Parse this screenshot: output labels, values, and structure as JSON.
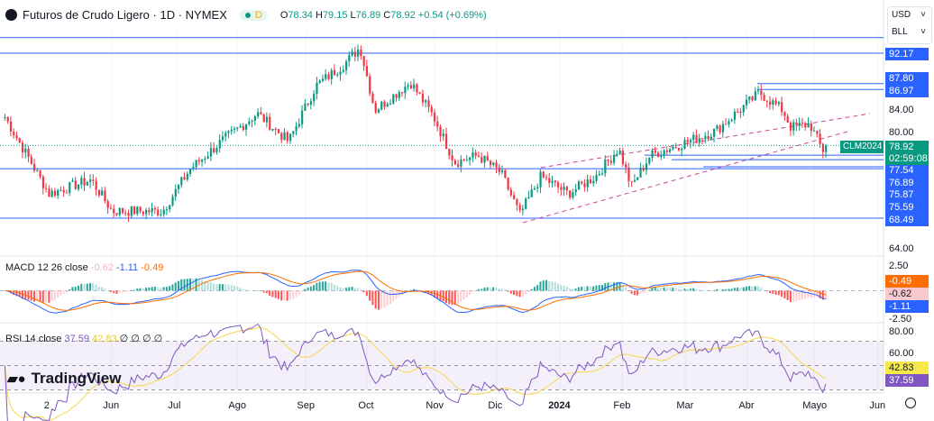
{
  "header": {
    "title": "Futuros de Crudo Ligero · 1D · NYMEX",
    "badge": "D",
    "open_label": "O",
    "open": "78.34",
    "high_label": "H",
    "high": "79.15",
    "low_label": "L",
    "low": "76.89",
    "close_label": "C",
    "close": "78.92",
    "change": "+0.54 (+0.69%)"
  },
  "selectors": {
    "currency": "USD",
    "unit": "BLL"
  },
  "price_axis": {
    "ticks": [
      "84.00",
      "80.00",
      "64.00"
    ],
    "levels": [
      "92.17",
      "87.80",
      "86.97",
      "77.54",
      "76.89",
      "75.87",
      "75.59",
      "68.49"
    ],
    "symbol_tag": "CLM2024",
    "last_price": "78.92",
    "countdown": "02:59:08"
  },
  "macd": {
    "label": "MACD",
    "params": "12 26 close",
    "hist": "-0.62",
    "macd": "-1.11",
    "signal": "-0.49",
    "ticks": [
      "2.50",
      "-2.50"
    ]
  },
  "rsi": {
    "label": "RSI",
    "params": "14 close",
    "value": "37.59",
    "ma": "42.83",
    "empty": [
      "∅",
      "∅",
      "∅",
      "∅"
    ],
    "ticks": [
      "80.00",
      "60.00"
    ]
  },
  "x_axis": [
    "2",
    "Jun",
    "Jul",
    "Ago",
    "Sep",
    "Oct",
    "Nov",
    "Dic",
    "2024",
    "Feb",
    "Mar",
    "Abr",
    "Mayo",
    "Jun"
  ],
  "brand": "TradingView",
  "colors": {
    "up": "#089981",
    "down": "#f23645",
    "level": "#2962ff",
    "macd": "#2962ff",
    "signal": "#ff6d00",
    "rsi": "#7e57c2",
    "rsi_ma": "#f7d74a"
  },
  "chart_data": {
    "type": "candlestick",
    "ylim": [
      62,
      96
    ],
    "close_path": [
      [
        "2023-04-12",
        83
      ],
      [
        "2023-05-03",
        72
      ],
      [
        "2023-05-23",
        74
      ],
      [
        "2023-06-02",
        69.5
      ],
      [
        "2023-06-26",
        69.5
      ],
      [
        "2023-07-09",
        75.5
      ],
      [
        "2023-07-24",
        79.5
      ],
      [
        "2023-08-10",
        83.5
      ],
      [
        "2023-08-25",
        79.5
      ],
      [
        "2023-09-07",
        87.5
      ],
      [
        "2023-09-20",
        90.5
      ],
      [
        "2023-09-28",
        93
      ],
      [
        "2023-10-05",
        84
      ],
      [
        "2023-10-22",
        88
      ],
      [
        "2023-11-02",
        83
      ],
      [
        "2023-11-12",
        76.5
      ],
      [
        "2023-11-23",
        77.5
      ],
      [
        "2023-12-04",
        75
      ],
      [
        "2023-12-13",
        69
      ],
      [
        "2023-12-23",
        74.5
      ],
      [
        "2024-01-05",
        72
      ],
      [
        "2024-01-18",
        74.5
      ],
      [
        "2024-01-29",
        78.5
      ],
      [
        "2024-02-04",
        73
      ],
      [
        "2024-02-13",
        77.5
      ],
      [
        "2024-03-02",
        79.5
      ],
      [
        "2024-03-15",
        81
      ],
      [
        "2024-04-05",
        86.5
      ],
      [
        "2024-04-16",
        84
      ],
      [
        "2024-04-20",
        81.5
      ],
      [
        "2024-04-29",
        82
      ],
      [
        "2024-05-05",
        78.2
      ],
      [
        "2024-05-08",
        78.92
      ]
    ],
    "horizontal_levels": [
      94.4,
      92.17,
      87.8,
      86.97,
      77.54,
      76.89,
      75.87,
      75.59,
      68.49
    ]
  }
}
